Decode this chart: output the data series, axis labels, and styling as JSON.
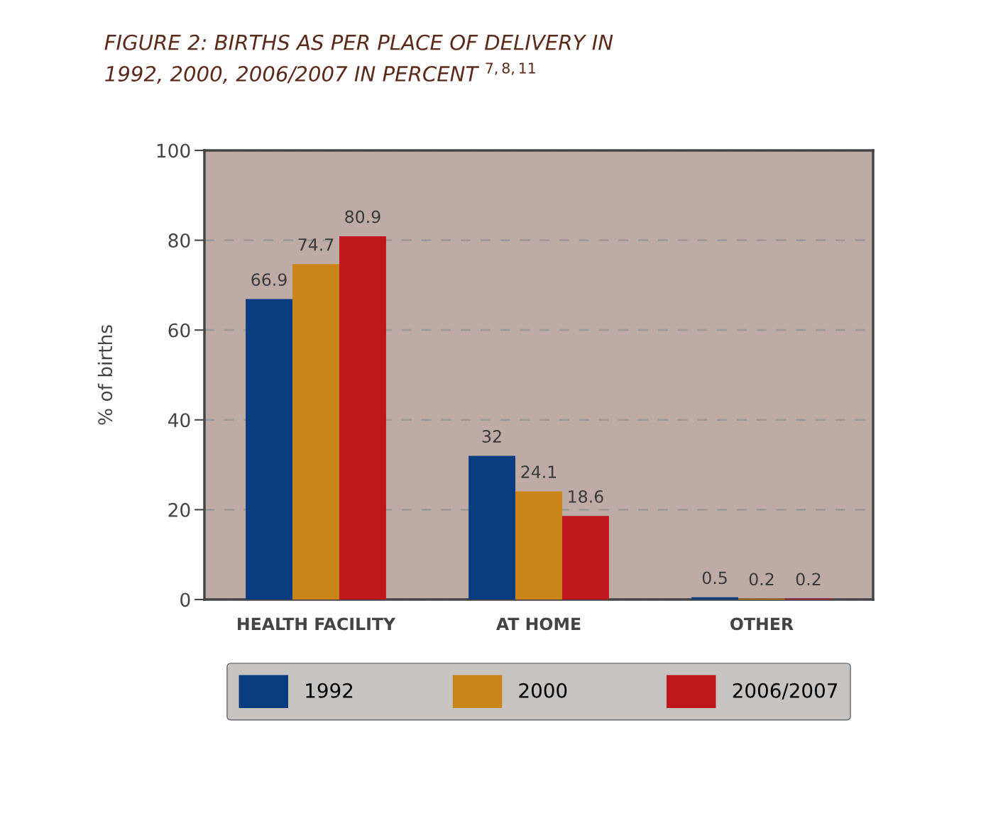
{
  "chart_data": {
    "type": "bar",
    "title": "FIGURE 2: BIRTHS AS PER PLACE OF DELIVERY IN\n1992, 2000, 2006/2007 IN PERCENT $^{7,8,11}$",
    "ylabel": "% of births",
    "categories": [
      "HEALTH FACILITY",
      "AT HOME",
      "OTHER"
    ],
    "series": [
      {
        "name": "1992",
        "color": "#0a3d80",
        "values": [
          66.9,
          32,
          0.5
        ]
      },
      {
        "name": "2000",
        "color": "#c98518",
        "values": [
          74.7,
          24.1,
          0.2
        ]
      },
      {
        "name": "2006/2007",
        "color": "#c0161c",
        "values": [
          80.9,
          18.6,
          0.2
        ]
      }
    ],
    "ylim": [
      0,
      100
    ],
    "yticks": [
      0,
      20,
      40,
      60,
      80,
      100
    ],
    "grid": "y",
    "data_labels": true,
    "legend": "bottom"
  }
}
